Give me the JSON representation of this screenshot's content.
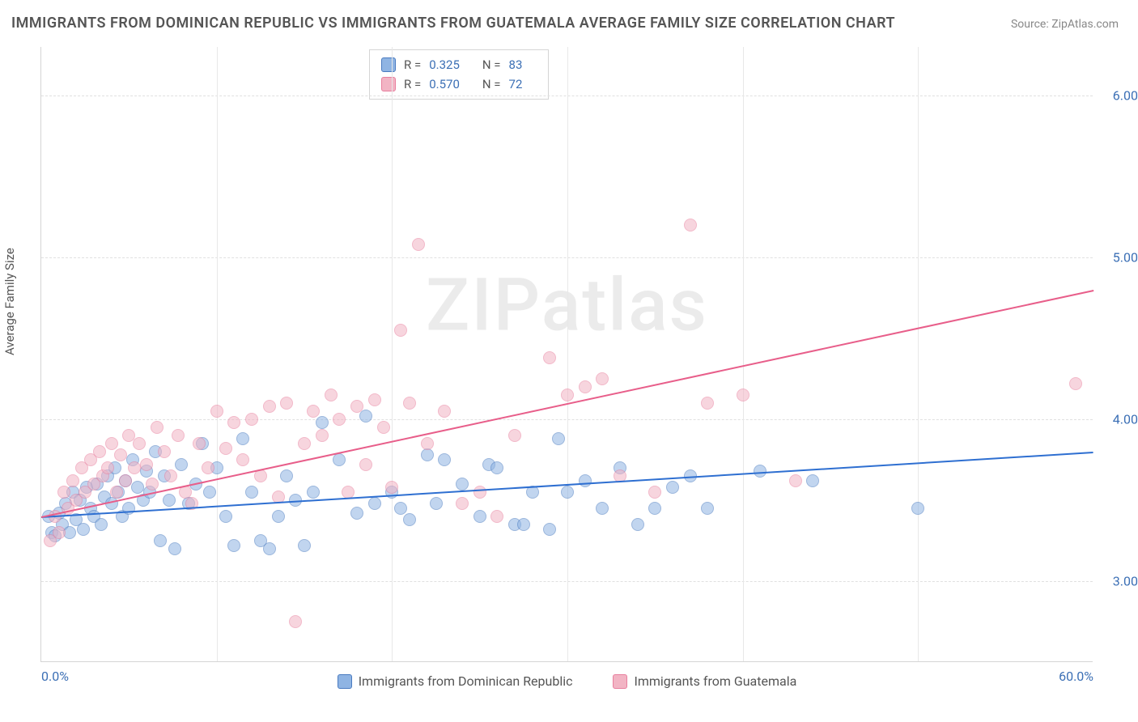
{
  "title": "IMMIGRANTS FROM DOMINICAN REPUBLIC VS IMMIGRANTS FROM GUATEMALA AVERAGE FAMILY SIZE CORRELATION CHART",
  "source": "Source: ZipAtlas.com",
  "ylabel": "Average Family Size",
  "watermark": "ZIPatlas",
  "chart": {
    "type": "scatter",
    "background_color": "#ffffff",
    "grid_color": "#e0e0e0",
    "axis_color": "#d5d5d5",
    "tick_label_color": "#3b6fb5",
    "text_color": "#555555",
    "title_fontsize": 18,
    "label_fontsize": 15,
    "tick_fontsize": 16,
    "xlim": [
      0,
      60
    ],
    "ylim": [
      2.5,
      6.3
    ],
    "xticks": [
      0,
      60
    ],
    "xtick_labels": [
      "0.0%",
      "60.0%"
    ],
    "yticks": [
      3.0,
      4.0,
      5.0,
      6.0
    ],
    "ytick_labels": [
      "3.00",
      "4.00",
      "5.00",
      "6.00"
    ],
    "x_minor_gridlines": [
      10,
      20,
      30,
      40,
      50
    ],
    "marker_size": 16,
    "marker_opacity": 0.55,
    "series": [
      {
        "name": "Immigrants from Dominican Republic",
        "fill_color": "#8fb4e3",
        "stroke_color": "#4a7bc0",
        "trend_color": "#2e6fd1",
        "R": "0.325",
        "N": "83",
        "trend": {
          "x1": 0,
          "y1": 3.4,
          "x2": 60,
          "y2": 3.8
        },
        "points": [
          [
            0.4,
            3.4
          ],
          [
            0.6,
            3.3
          ],
          [
            0.8,
            3.28
          ],
          [
            1.0,
            3.42
          ],
          [
            1.2,
            3.35
          ],
          [
            1.4,
            3.48
          ],
          [
            1.6,
            3.3
          ],
          [
            1.8,
            3.55
          ],
          [
            2.0,
            3.38
          ],
          [
            2.2,
            3.5
          ],
          [
            2.4,
            3.32
          ],
          [
            2.6,
            3.58
          ],
          [
            2.8,
            3.45
          ],
          [
            3.0,
            3.4
          ],
          [
            3.2,
            3.6
          ],
          [
            3.4,
            3.35
          ],
          [
            3.6,
            3.52
          ],
          [
            3.8,
            3.65
          ],
          [
            4.0,
            3.48
          ],
          [
            4.2,
            3.7
          ],
          [
            4.4,
            3.55
          ],
          [
            4.6,
            3.4
          ],
          [
            4.8,
            3.62
          ],
          [
            5.0,
            3.45
          ],
          [
            5.2,
            3.75
          ],
          [
            5.5,
            3.58
          ],
          [
            5.8,
            3.5
          ],
          [
            6.0,
            3.68
          ],
          [
            6.2,
            3.55
          ],
          [
            6.5,
            3.8
          ],
          [
            6.8,
            3.25
          ],
          [
            7.0,
            3.65
          ],
          [
            7.3,
            3.5
          ],
          [
            7.6,
            3.2
          ],
          [
            8.0,
            3.72
          ],
          [
            8.4,
            3.48
          ],
          [
            8.8,
            3.6
          ],
          [
            9.2,
            3.85
          ],
          [
            9.6,
            3.55
          ],
          [
            10.0,
            3.7
          ],
          [
            10.5,
            3.4
          ],
          [
            11.0,
            3.22
          ],
          [
            11.5,
            3.88
          ],
          [
            12.0,
            3.55
          ],
          [
            12.5,
            3.25
          ],
          [
            13.0,
            3.2
          ],
          [
            13.5,
            3.4
          ],
          [
            14.0,
            3.65
          ],
          [
            14.5,
            3.5
          ],
          [
            15.0,
            3.22
          ],
          [
            15.5,
            3.55
          ],
          [
            16.0,
            3.98
          ],
          [
            17.0,
            3.75
          ],
          [
            18.0,
            3.42
          ],
          [
            18.5,
            4.02
          ],
          [
            19.0,
            3.48
          ],
          [
            20.0,
            3.55
          ],
          [
            20.5,
            3.45
          ],
          [
            21.0,
            3.38
          ],
          [
            22.0,
            3.78
          ],
          [
            22.5,
            3.48
          ],
          [
            23.0,
            3.75
          ],
          [
            24.0,
            3.6
          ],
          [
            25.0,
            3.4
          ],
          [
            25.5,
            3.72
          ],
          [
            26.0,
            3.7
          ],
          [
            27.0,
            3.35
          ],
          [
            27.5,
            3.35
          ],
          [
            28.0,
            3.55
          ],
          [
            29.0,
            3.32
          ],
          [
            29.5,
            3.88
          ],
          [
            30.0,
            3.55
          ],
          [
            31.0,
            3.62
          ],
          [
            32.0,
            3.45
          ],
          [
            33.0,
            3.7
          ],
          [
            34.0,
            3.35
          ],
          [
            35.0,
            3.45
          ],
          [
            36.0,
            3.58
          ],
          [
            37.0,
            3.65
          ],
          [
            38.0,
            3.45
          ],
          [
            41.0,
            3.68
          ],
          [
            44.0,
            3.62
          ],
          [
            50.0,
            3.45
          ]
        ]
      },
      {
        "name": "Immigrants from Guatemala",
        "fill_color": "#f2b4c4",
        "stroke_color": "#e87f9e",
        "trend_color": "#e85e8a",
        "R": "0.570",
        "N": "72",
        "trend": {
          "x1": 0,
          "y1": 3.4,
          "x2": 60,
          "y2": 4.8
        },
        "points": [
          [
            0.5,
            3.25
          ],
          [
            0.8,
            3.4
          ],
          [
            1.0,
            3.3
          ],
          [
            1.3,
            3.55
          ],
          [
            1.5,
            3.45
          ],
          [
            1.8,
            3.62
          ],
          [
            2.0,
            3.5
          ],
          [
            2.3,
            3.7
          ],
          [
            2.5,
            3.55
          ],
          [
            2.8,
            3.75
          ],
          [
            3.0,
            3.6
          ],
          [
            3.3,
            3.8
          ],
          [
            3.5,
            3.65
          ],
          [
            3.8,
            3.7
          ],
          [
            4.0,
            3.85
          ],
          [
            4.3,
            3.55
          ],
          [
            4.5,
            3.78
          ],
          [
            4.8,
            3.62
          ],
          [
            5.0,
            3.9
          ],
          [
            5.3,
            3.7
          ],
          [
            5.6,
            3.85
          ],
          [
            6.0,
            3.72
          ],
          [
            6.3,
            3.6
          ],
          [
            6.6,
            3.95
          ],
          [
            7.0,
            3.8
          ],
          [
            7.4,
            3.65
          ],
          [
            7.8,
            3.9
          ],
          [
            8.2,
            3.55
          ],
          [
            8.6,
            3.48
          ],
          [
            9.0,
            3.85
          ],
          [
            9.5,
            3.7
          ],
          [
            10.0,
            4.05
          ],
          [
            10.5,
            3.82
          ],
          [
            11.0,
            3.98
          ],
          [
            11.5,
            3.75
          ],
          [
            12.0,
            4.0
          ],
          [
            12.5,
            3.65
          ],
          [
            13.0,
            4.08
          ],
          [
            13.5,
            3.52
          ],
          [
            14.0,
            4.1
          ],
          [
            14.5,
            2.75
          ],
          [
            15.0,
            3.85
          ],
          [
            15.5,
            4.05
          ],
          [
            16.0,
            3.9
          ],
          [
            16.5,
            4.15
          ],
          [
            17.0,
            4.0
          ],
          [
            17.5,
            3.55
          ],
          [
            18.0,
            4.08
          ],
          [
            18.5,
            3.72
          ],
          [
            19.0,
            4.12
          ],
          [
            19.5,
            3.95
          ],
          [
            20.0,
            3.58
          ],
          [
            20.5,
            4.55
          ],
          [
            21.0,
            4.1
          ],
          [
            21.5,
            5.08
          ],
          [
            22.0,
            3.85
          ],
          [
            23.0,
            4.05
          ],
          [
            24.0,
            3.48
          ],
          [
            25.0,
            3.55
          ],
          [
            26.0,
            3.4
          ],
          [
            27.0,
            3.9
          ],
          [
            29.0,
            4.38
          ],
          [
            30.0,
            4.15
          ],
          [
            31.0,
            4.2
          ],
          [
            32.0,
            4.25
          ],
          [
            33.0,
            3.65
          ],
          [
            35.0,
            3.55
          ],
          [
            37.0,
            5.2
          ],
          [
            38.0,
            4.1
          ],
          [
            40.0,
            4.15
          ],
          [
            43.0,
            3.62
          ],
          [
            59.0,
            4.22
          ]
        ]
      }
    ],
    "legend_bottom_labels": [
      "Immigrants from Dominican Republic",
      "Immigrants from Guatemala"
    ]
  }
}
